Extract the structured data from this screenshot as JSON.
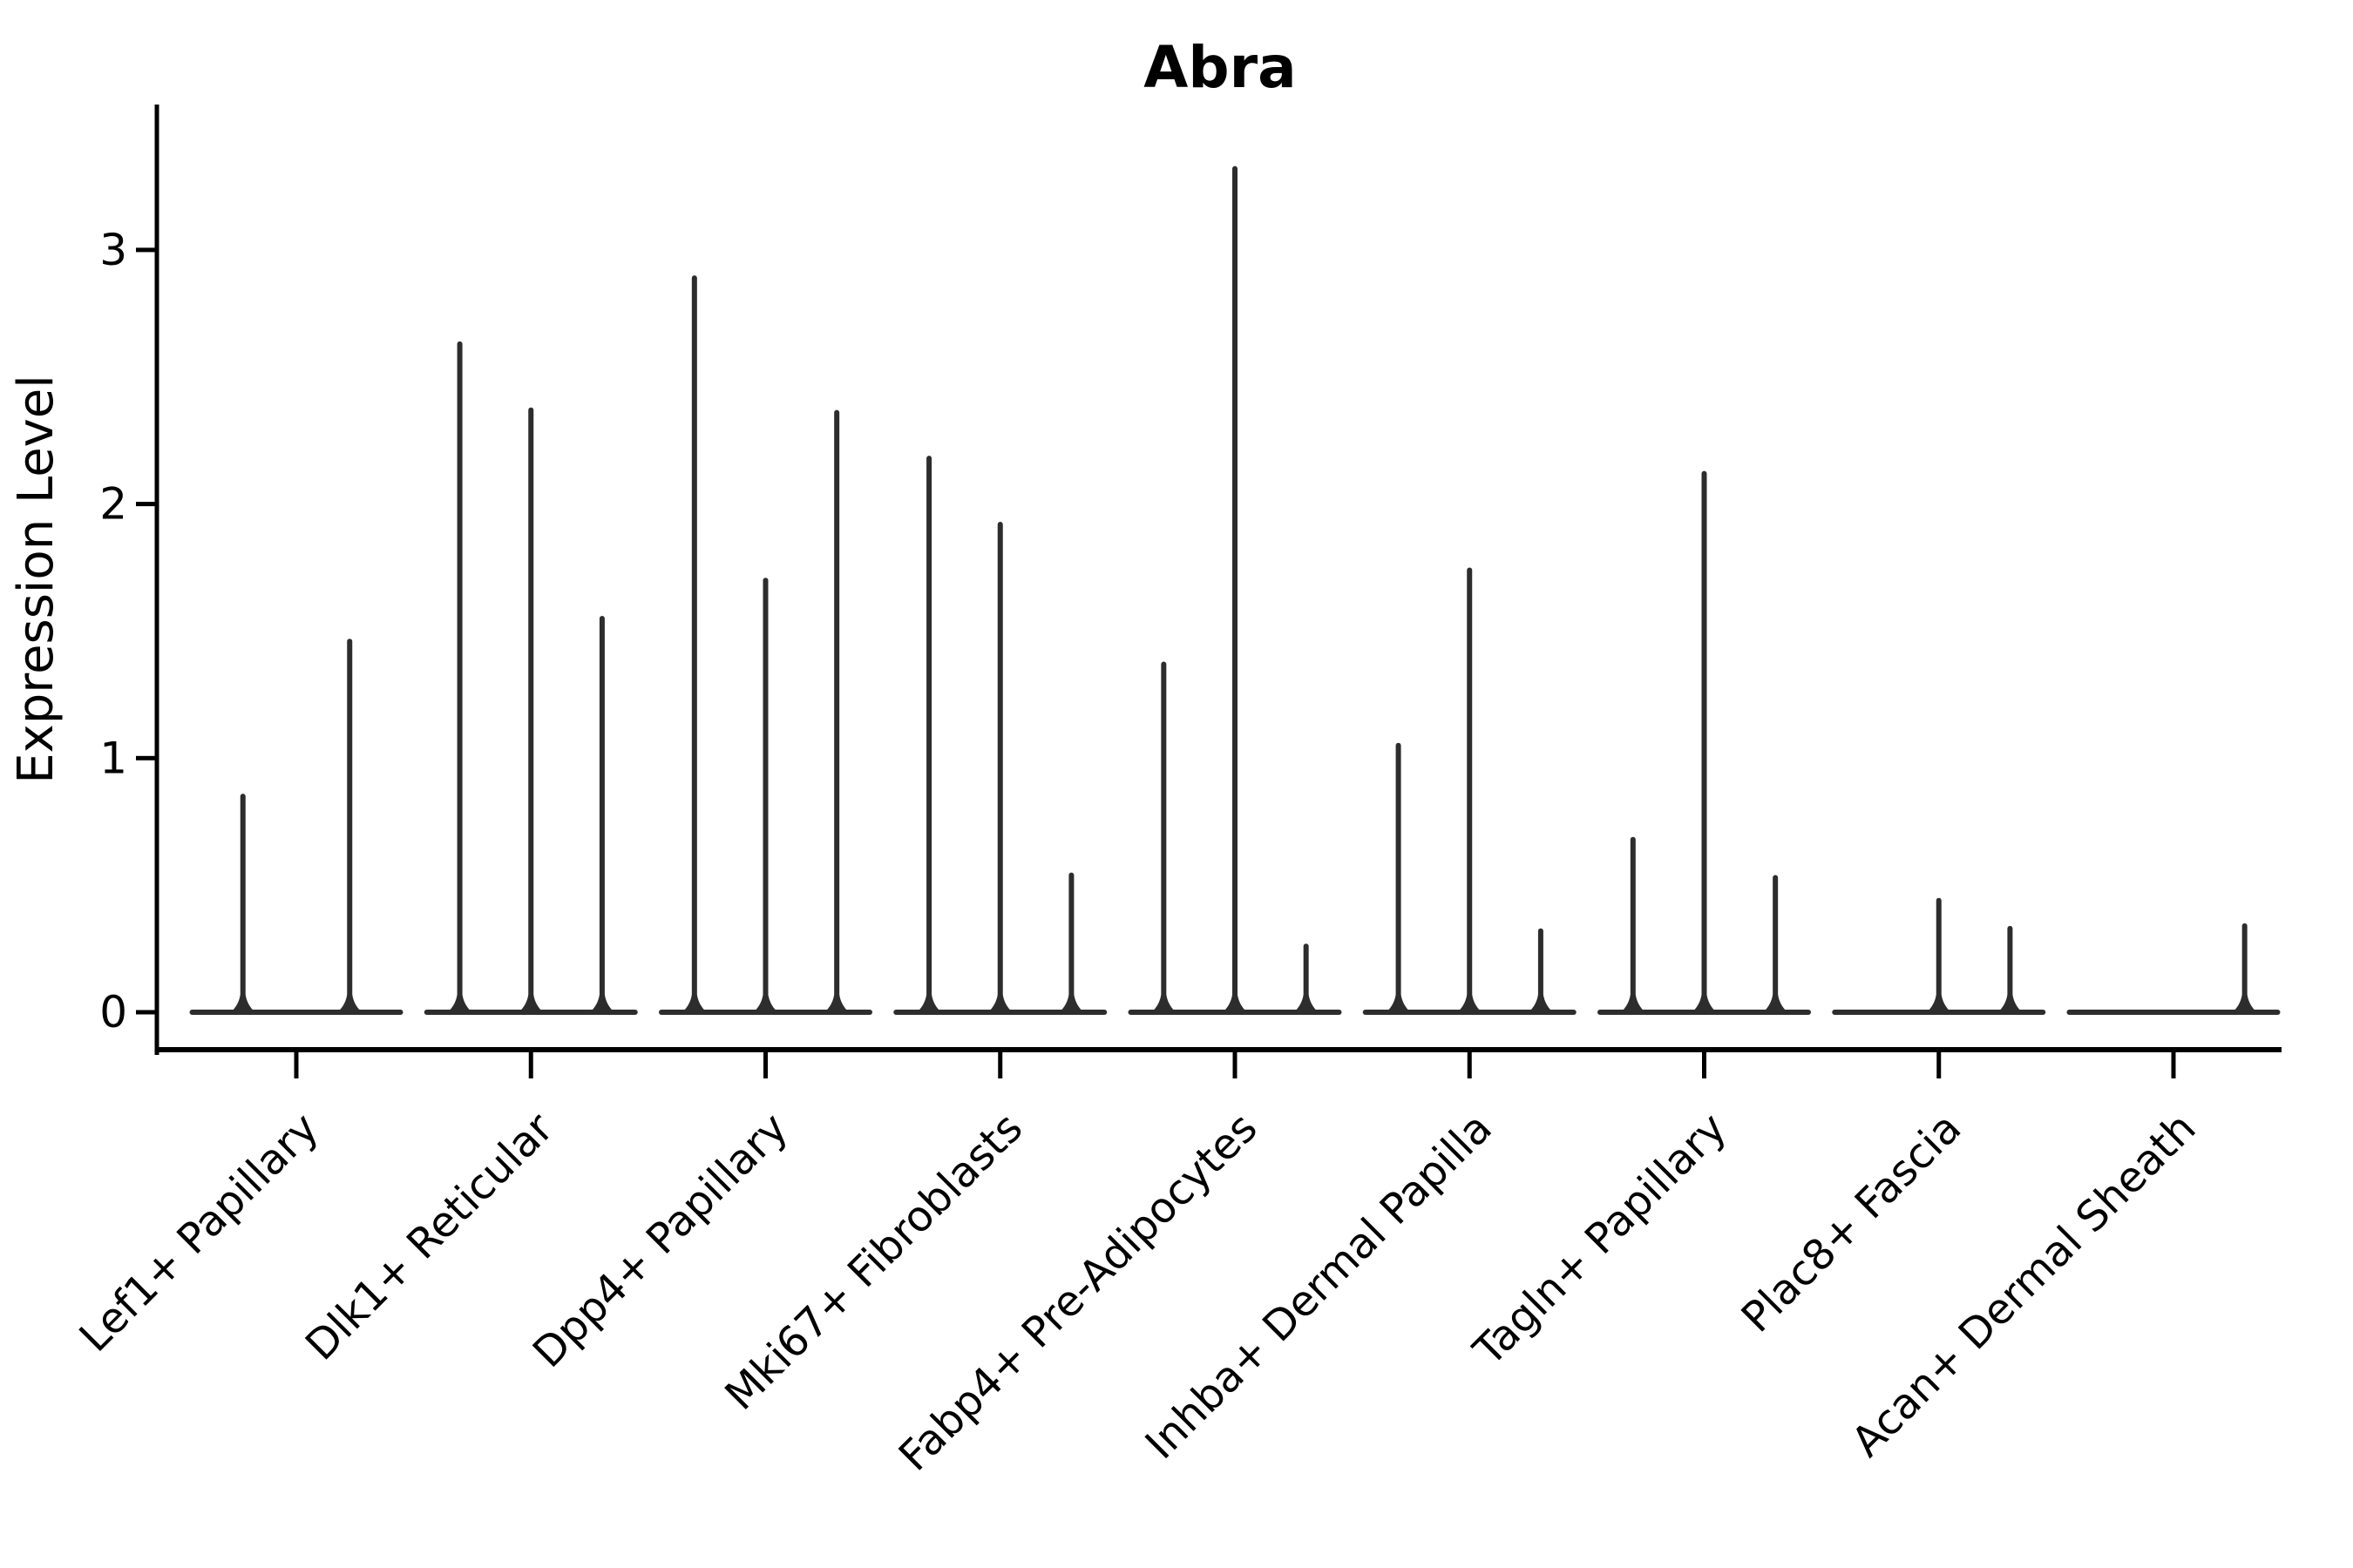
{
  "chart_data": {
    "type": "violin",
    "title": "Abra",
    "xlabel": "",
    "ylabel": "Expression Level",
    "yticks": [
      0,
      1,
      2,
      3
    ],
    "ylim": [
      -0.15,
      3.57
    ],
    "grid": false,
    "legend": "none",
    "background": "#ffffff",
    "violin_color": "#2d2d2d",
    "axis_color": "#000000",
    "categories": [
      "Lef1+ Papillary",
      "Dlk1+ Reticular",
      "Dpp4+ Papillary",
      "Mki67+ Fibroblasts",
      "Fabp4+ Pre-Adipocytes",
      "Inhba+ Dermal Papilla",
      "Tagln+ Papillary",
      "Plac8+ Fascia",
      "Acan+ Dermal Sheath"
    ],
    "violin_max_values": [
      [
        0.86,
        1.47
      ],
      [
        2.64,
        2.38,
        1.56
      ],
      [
        2.9,
        1.71,
        2.37
      ],
      [
        2.19,
        1.93,
        0.55
      ],
      [
        1.38,
        3.33,
        0.27
      ],
      [
        1.06,
        1.75,
        0.33
      ],
      [
        0.69,
        2.13,
        0.54
      ],
      [
        0,
        0.45,
        0.34
      ],
      [
        0,
        0,
        0.35
      ]
    ]
  }
}
